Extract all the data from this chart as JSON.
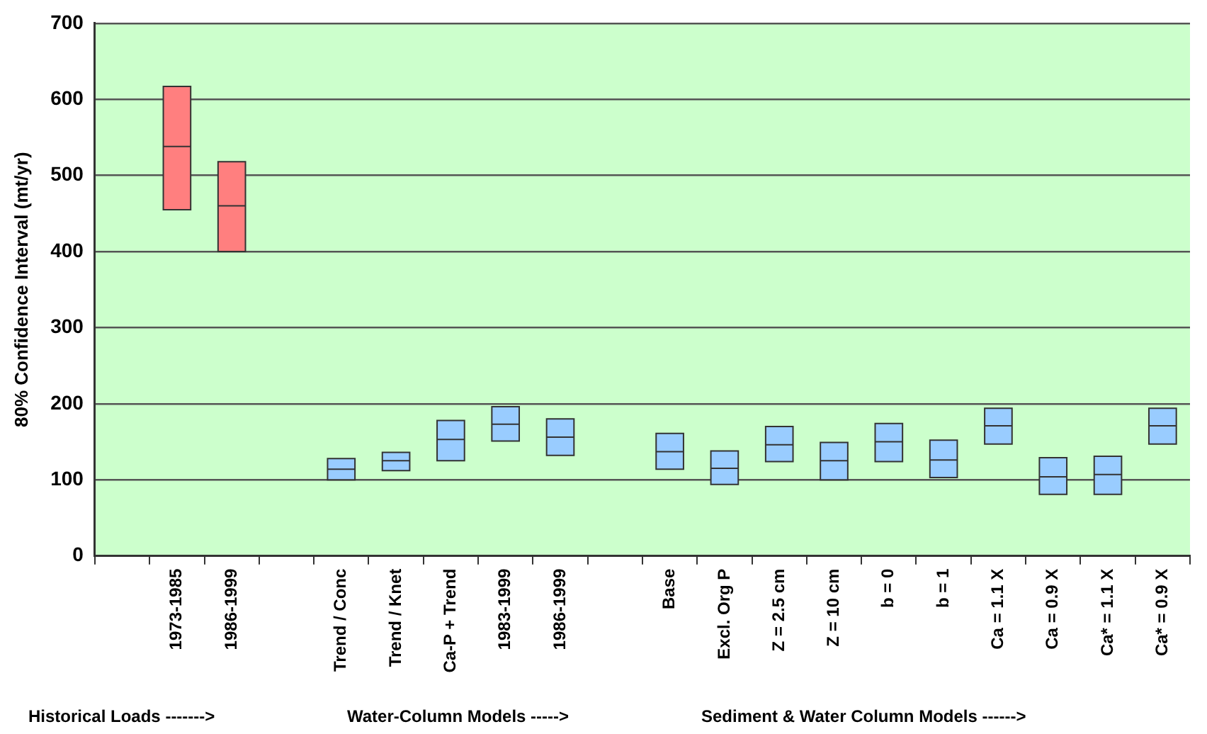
{
  "chart_data": {
    "type": "box",
    "ylabel": "80% Confidence Interval (mt/yr)",
    "categories": [
      null,
      "1973-1985",
      "1986-1999",
      null,
      "Trend / Conc",
      "Trend / Knet",
      "Ca-P + Trend",
      "1983-1999",
      "1986-1999",
      null,
      "Base",
      "Excl. Org P",
      "Z = 2.5 cm",
      "Z = 10 cm",
      "b = 0",
      "b = 1",
      "Ca = 1.1 X",
      "Ca = 0.9 X",
      "Ca* = 1.1 X",
      "Ca* = 0.9 X"
    ],
    "boxes": [
      null,
      {
        "low": 455,
        "q1": 455,
        "median": 538,
        "q3": 617,
        "high": 617
      },
      {
        "low": 400,
        "q1": 400,
        "median": 460,
        "q3": 518,
        "high": 518
      },
      null,
      {
        "low": 100,
        "q1": 100,
        "median": 114,
        "q3": 128,
        "high": 128
      },
      {
        "low": 112,
        "q1": 112,
        "median": 125,
        "q3": 136,
        "high": 136
      },
      {
        "low": 125,
        "q1": 125,
        "median": 153,
        "q3": 178,
        "high": 178
      },
      {
        "low": 151,
        "q1": 151,
        "median": 173,
        "q3": 196,
        "high": 196
      },
      {
        "low": 132,
        "q1": 132,
        "median": 156,
        "q3": 180,
        "high": 180
      },
      null,
      {
        "low": 114,
        "q1": 114,
        "median": 137,
        "q3": 161,
        "high": 161
      },
      {
        "low": 94,
        "q1": 94,
        "median": 115,
        "q3": 138,
        "high": 138
      },
      {
        "low": 124,
        "q1": 124,
        "median": 146,
        "q3": 170,
        "high": 170
      },
      {
        "low": 100,
        "q1": 100,
        "median": 125,
        "q3": 149,
        "high": 149
      },
      {
        "low": 124,
        "q1": 124,
        "median": 150,
        "q3": 174,
        "high": 174
      },
      {
        "low": 103,
        "q1": 103,
        "median": 126,
        "q3": 152,
        "high": 152
      },
      {
        "low": 147,
        "q1": 147,
        "median": 171,
        "q3": 194,
        "high": 194
      },
      {
        "low": 81,
        "q1": 81,
        "median": 104,
        "q3": 129,
        "high": 129
      },
      {
        "low": 81,
        "q1": 81,
        "median": 107,
        "q3": 131,
        "high": 131
      },
      {
        "low": 147,
        "q1": 147,
        "median": 171,
        "q3": 194,
        "high": 194
      }
    ],
    "colors": [
      null,
      "#ff7f7f",
      "#ff7f7f",
      null,
      "#99ccff",
      "#99ccff",
      "#99ccff",
      "#99ccff",
      "#99ccff",
      null,
      "#99ccff",
      "#99ccff",
      "#99ccff",
      "#99ccff",
      "#99ccff",
      "#99ccff",
      "#99ccff",
      "#99ccff",
      "#99ccff",
      "#99ccff"
    ],
    "ylim": [
      0,
      700
    ],
    "yticks": [
      0,
      100,
      200,
      300,
      400,
      500,
      600,
      700
    ],
    "grid": "y",
    "annotations": [
      "Historical Loads ------->",
      "Water-Column Models ----->",
      "Sediment & Water Column Models ------>"
    ]
  }
}
